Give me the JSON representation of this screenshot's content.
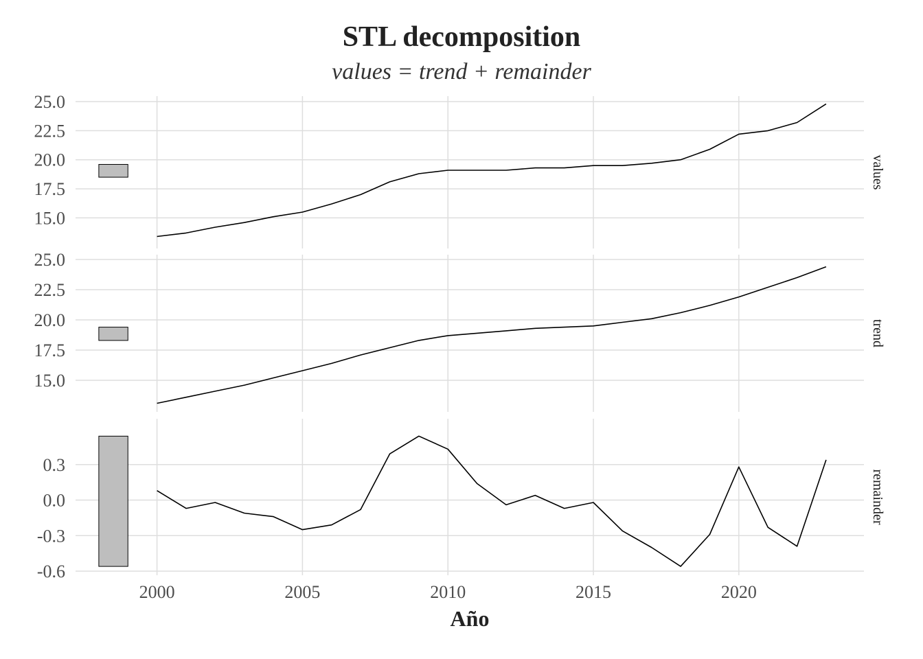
{
  "chart_data": {
    "type": "line",
    "title": "STL decomposition",
    "subtitle": "values = trend + remainder",
    "xlabel": "Año",
    "x": [
      2000,
      2001,
      2002,
      2003,
      2004,
      2005,
      2006,
      2007,
      2008,
      2009,
      2010,
      2011,
      2012,
      2013,
      2014,
      2015,
      2016,
      2017,
      2018,
      2019,
      2020,
      2021,
      2022,
      2023
    ],
    "x_ticks": [
      2000,
      2005,
      2010,
      2015,
      2020
    ],
    "xlim": [
      1997.2,
      2024.3
    ],
    "grid": true,
    "panels": [
      {
        "name": "values",
        "ylim": [
          12.9,
          25.0
        ],
        "y_ticks": [
          15.0,
          17.5,
          20.0,
          22.5,
          25.0
        ],
        "y_tick_labels": [
          "15.0",
          "17.5",
          "20.0",
          "22.5",
          "25.0"
        ],
        "range_bar": [
          18.5,
          19.6
        ],
        "values": [
          13.4,
          13.7,
          14.2,
          14.6,
          15.1,
          15.5,
          16.2,
          17.0,
          18.1,
          18.8,
          19.1,
          19.1,
          19.1,
          19.3,
          19.3,
          19.5,
          19.5,
          19.7,
          20.0,
          20.9,
          22.2,
          22.5,
          23.2,
          24.8
        ]
      },
      {
        "name": "trend",
        "ylim": [
          12.9,
          25.0
        ],
        "y_ticks": [
          15.0,
          17.5,
          20.0,
          22.5,
          25.0
        ],
        "y_tick_labels": [
          "15.0",
          "17.5",
          "20.0",
          "22.5",
          "25.0"
        ],
        "range_bar": [
          18.3,
          19.4
        ],
        "values": [
          13.1,
          13.6,
          14.1,
          14.6,
          15.2,
          15.8,
          16.4,
          17.1,
          17.7,
          18.3,
          18.7,
          18.9,
          19.1,
          19.3,
          19.4,
          19.5,
          19.8,
          20.1,
          20.6,
          21.2,
          21.9,
          22.7,
          23.5,
          24.4
        ]
      },
      {
        "name": "remainder",
        "ylim": [
          -0.6,
          0.6
        ],
        "y_ticks": [
          -0.6,
          -0.3,
          0.0,
          0.3
        ],
        "y_tick_labels": [
          "-0.6",
          "-0.3",
          "0.0",
          "0.3"
        ],
        "range_bar": [
          -0.56,
          0.54
        ],
        "values": [
          0.08,
          -0.07,
          -0.02,
          -0.11,
          -0.14,
          -0.25,
          -0.21,
          -0.08,
          0.39,
          0.54,
          0.43,
          0.14,
          -0.04,
          0.04,
          -0.07,
          -0.02,
          -0.26,
          -0.4,
          -0.56,
          -0.29,
          0.28,
          -0.23,
          -0.39,
          0.34
        ]
      }
    ]
  }
}
